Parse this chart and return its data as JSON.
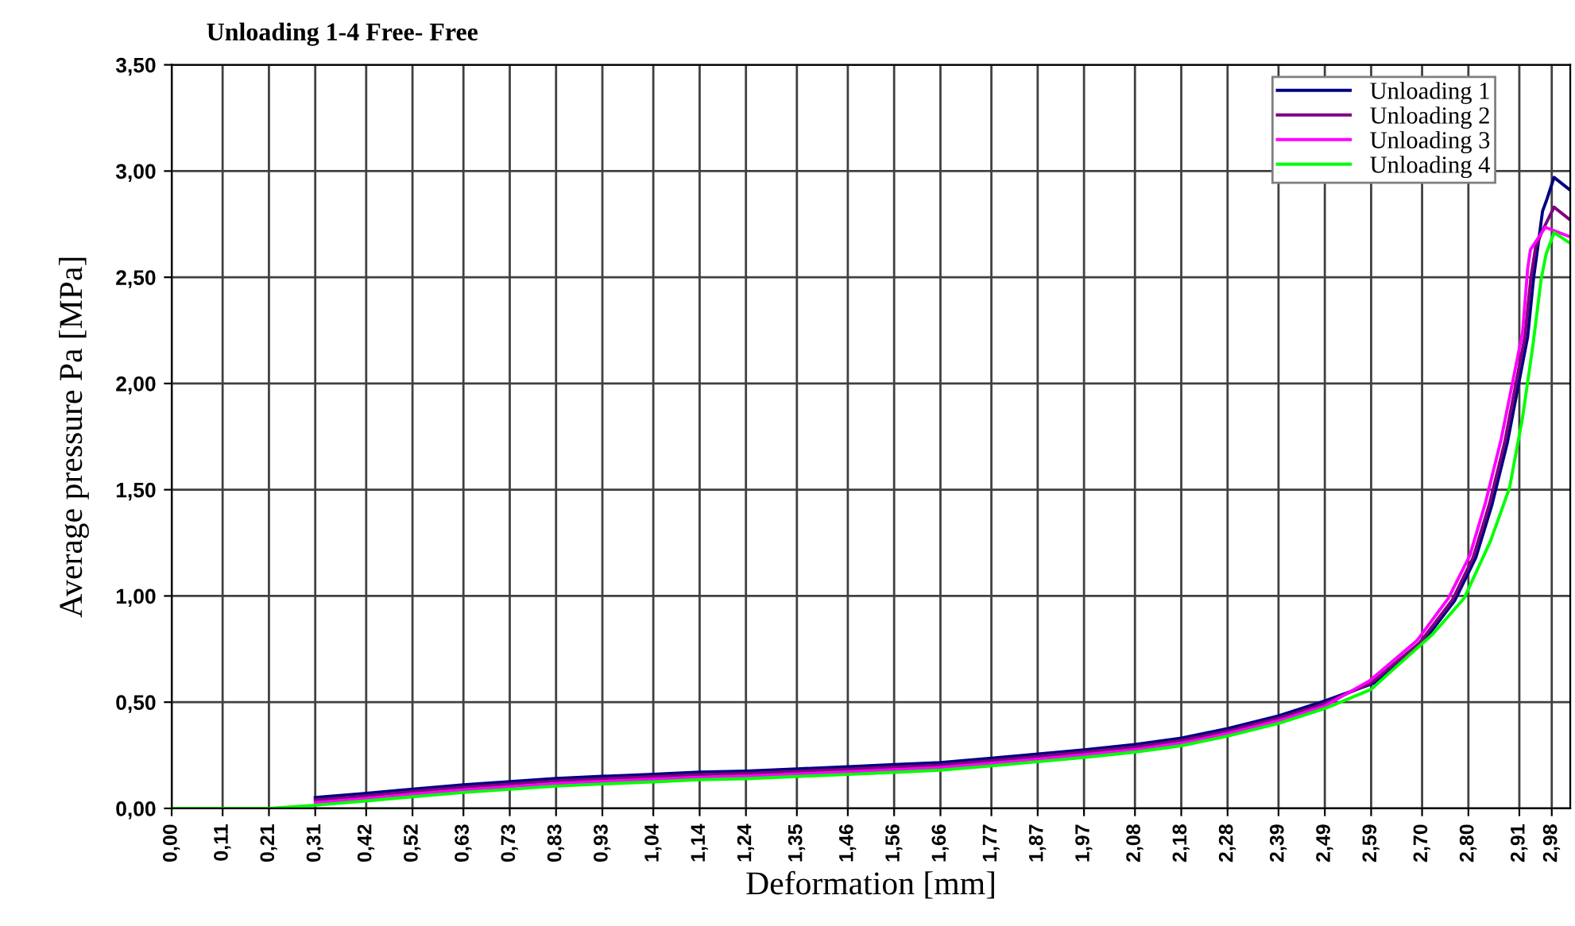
{
  "chart_data": {
    "type": "line",
    "title": "Unloading 1-4 Free- Free",
    "xlabel": "Deformation [mm]",
    "ylabel": "Average pressure Pa [MPa]",
    "xlim": [
      0,
      3.02
    ],
    "ylim": [
      0,
      3.5
    ],
    "xticks": [
      {
        "value": 0,
        "label": "0,00"
      },
      {
        "value": 0.11,
        "label": "0,11"
      },
      {
        "value": 0.21,
        "label": "0,21"
      },
      {
        "value": 0.31,
        "label": "0,31"
      },
      {
        "value": 0.42,
        "label": "0,42"
      },
      {
        "value": 0.52,
        "label": "0,52"
      },
      {
        "value": 0.63,
        "label": "0,63"
      },
      {
        "value": 0.73,
        "label": "0,73"
      },
      {
        "value": 0.83,
        "label": "0,83"
      },
      {
        "value": 0.93,
        "label": "0,93"
      },
      {
        "value": 1.04,
        "label": "1,04"
      },
      {
        "value": 1.14,
        "label": "1,14"
      },
      {
        "value": 1.24,
        "label": "1,24"
      },
      {
        "value": 1.35,
        "label": "1,35"
      },
      {
        "value": 1.46,
        "label": "1,46"
      },
      {
        "value": 1.56,
        "label": "1,56"
      },
      {
        "value": 1.66,
        "label": "1,66"
      },
      {
        "value": 1.77,
        "label": "1,77"
      },
      {
        "value": 1.87,
        "label": "1,87"
      },
      {
        "value": 1.97,
        "label": "1,97"
      },
      {
        "value": 2.08,
        "label": "2,08"
      },
      {
        "value": 2.18,
        "label": "2,18"
      },
      {
        "value": 2.28,
        "label": "2,28"
      },
      {
        "value": 2.39,
        "label": "2,39"
      },
      {
        "value": 2.49,
        "label": "2,49"
      },
      {
        "value": 2.59,
        "label": "2,59"
      },
      {
        "value": 2.7,
        "label": "2,70"
      },
      {
        "value": 2.8,
        "label": "2,80"
      },
      {
        "value": 2.91,
        "label": "2,91"
      },
      {
        "value": 2.98,
        "label": "2,98"
      }
    ],
    "yticks": [
      {
        "value": 0,
        "label": "0,00"
      },
      {
        "value": 0.5,
        "label": "0,50"
      },
      {
        "value": 1,
        "label": "1,00"
      },
      {
        "value": 1.5,
        "label": "1,50"
      },
      {
        "value": 2,
        "label": "2,00"
      },
      {
        "value": 2.5,
        "label": "2,50"
      },
      {
        "value": 3,
        "label": "3,00"
      },
      {
        "value": 3.5,
        "label": "3,50"
      }
    ],
    "grid": true,
    "legend": "top right",
    "marker": "none",
    "line_style": "solid",
    "series": [
      {
        "name": "Unloading 1",
        "color": "#000080",
        "x": [
          0.31,
          0.42,
          0.52,
          0.63,
          0.73,
          0.83,
          0.93,
          1.04,
          1.14,
          1.24,
          1.35,
          1.46,
          1.56,
          1.66,
          1.77,
          1.87,
          1.97,
          2.08,
          2.18,
          2.28,
          2.39,
          2.49,
          2.596,
          2.701,
          2.771,
          2.816,
          2.851,
          2.884,
          2.906,
          2.928,
          2.941,
          2.951,
          2.96,
          2.97,
          2.985,
          3.02
        ],
        "values": [
          0.051,
          0.071,
          0.091,
          0.111,
          0.126,
          0.141,
          0.151,
          0.161,
          0.171,
          0.176,
          0.186,
          0.196,
          0.206,
          0.216,
          0.236,
          0.256,
          0.276,
          0.301,
          0.331,
          0.376,
          0.436,
          0.506,
          0.59,
          0.78,
          0.98,
          1.18,
          1.43,
          1.72,
          1.97,
          2.22,
          2.5,
          2.66,
          2.81,
          2.87,
          2.97,
          2.91
        ]
      },
      {
        "name": "Unloading 2",
        "color": "#800080",
        "x": [
          0.31,
          0.42,
          0.52,
          0.63,
          0.73,
          0.83,
          0.93,
          1.04,
          1.14,
          1.24,
          1.35,
          1.46,
          1.56,
          1.66,
          1.77,
          1.87,
          1.97,
          2.08,
          2.18,
          2.28,
          2.39,
          2.49,
          2.59,
          2.695,
          2.765,
          2.81,
          2.845,
          2.878,
          2.9,
          2.922,
          2.935,
          2.945,
          2.96,
          2.985,
          3.02
        ],
        "values": [
          0.039,
          0.059,
          0.079,
          0.099,
          0.114,
          0.129,
          0.139,
          0.149,
          0.159,
          0.164,
          0.174,
          0.184,
          0.194,
          0.204,
          0.224,
          0.244,
          0.264,
          0.289,
          0.319,
          0.364,
          0.424,
          0.494,
          0.59,
          0.78,
          0.98,
          1.18,
          1.43,
          1.72,
          1.97,
          2.22,
          2.5,
          2.64,
          2.72,
          2.83,
          2.77
        ]
      },
      {
        "name": "Unloading 3",
        "color": "#ff00ff",
        "x": [
          0.31,
          0.42,
          0.52,
          0.63,
          0.73,
          0.83,
          0.93,
          1.04,
          1.14,
          1.24,
          1.35,
          1.46,
          1.56,
          1.66,
          1.77,
          1.87,
          1.97,
          2.08,
          2.18,
          2.28,
          2.39,
          2.49,
          2.586,
          2.689,
          2.757,
          2.803,
          2.837,
          2.871,
          2.894,
          2.917,
          2.928,
          2.934,
          2.966,
          3.02
        ],
        "values": [
          0.027,
          0.047,
          0.067,
          0.087,
          0.102,
          0.117,
          0.127,
          0.137,
          0.147,
          0.152,
          0.162,
          0.172,
          0.182,
          0.192,
          0.212,
          0.232,
          0.252,
          0.277,
          0.307,
          0.352,
          0.412,
          0.482,
          0.6,
          0.79,
          0.99,
          1.19,
          1.44,
          1.74,
          1.99,
          2.24,
          2.54,
          2.63,
          2.735,
          2.69
        ]
      },
      {
        "name": "Unloading 4",
        "color": "#00ff00",
        "x": [
          0,
          0.21,
          0.31,
          0.42,
          0.52,
          0.63,
          0.73,
          0.83,
          0.93,
          1.04,
          1.14,
          1.24,
          1.35,
          1.46,
          1.56,
          1.66,
          1.77,
          1.87,
          1.97,
          2.08,
          2.18,
          2.28,
          2.39,
          2.49,
          2.59,
          2.62,
          2.723,
          2.791,
          2.848,
          2.889,
          2.917,
          2.94,
          2.957,
          2.968,
          2.985,
          3.02
        ],
        "values": [
          0,
          0,
          0.015,
          0.035,
          0.055,
          0.075,
          0.09,
          0.105,
          0.115,
          0.125,
          0.135,
          0.14,
          0.15,
          0.16,
          0.17,
          0.18,
          0.2,
          0.22,
          0.24,
          0.265,
          0.295,
          0.34,
          0.4,
          0.47,
          0.56,
          0.62,
          0.82,
          0.99,
          1.26,
          1.51,
          1.84,
          2.19,
          2.49,
          2.61,
          2.71,
          2.66
        ]
      }
    ]
  }
}
